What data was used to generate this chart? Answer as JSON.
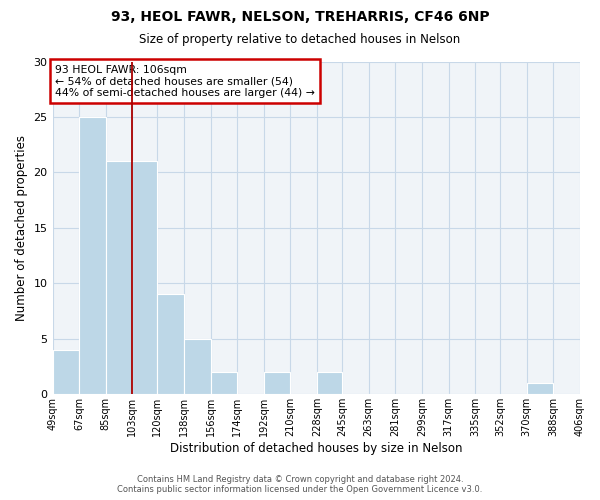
{
  "title": "93, HEOL FAWR, NELSON, TREHARRIS, CF46 6NP",
  "subtitle": "Size of property relative to detached houses in Nelson",
  "xlabel": "Distribution of detached houses by size in Nelson",
  "ylabel": "Number of detached properties",
  "footnote1": "Contains HM Land Registry data © Crown copyright and database right 2024.",
  "footnote2": "Contains public sector information licensed under the Open Government Licence v3.0.",
  "bins": [
    49,
    67,
    85,
    103,
    120,
    138,
    156,
    174,
    192,
    210,
    228,
    245,
    263,
    281,
    299,
    317,
    335,
    352,
    370,
    388,
    406
  ],
  "bin_labels": [
    "49sqm",
    "67sqm",
    "85sqm",
    "103sqm",
    "120sqm",
    "138sqm",
    "156sqm",
    "174sqm",
    "192sqm",
    "210sqm",
    "228sqm",
    "245sqm",
    "263sqm",
    "281sqm",
    "299sqm",
    "317sqm",
    "335sqm",
    "352sqm",
    "370sqm",
    "388sqm",
    "406sqm"
  ],
  "counts": [
    4,
    25,
    21,
    21,
    9,
    5,
    2,
    0,
    2,
    0,
    2,
    0,
    0,
    0,
    0,
    0,
    0,
    0,
    1,
    0
  ],
  "bar_color": "#bdd7e7",
  "bar_edge_color": "white",
  "vline_x": 103,
  "vline_color": "#aa0000",
  "annotation_text": "93 HEOL FAWR: 106sqm\n← 54% of detached houses are smaller (54)\n44% of semi-detached houses are larger (44) →",
  "annotation_box_color": "white",
  "annotation_box_edge_color": "#cc0000",
  "ylim": [
    0,
    30
  ],
  "yticks": [
    0,
    5,
    10,
    15,
    20,
    25,
    30
  ],
  "background_color": "#ffffff",
  "plot_bg_color": "#f0f4f8",
  "grid_color": "#c8d8e8"
}
